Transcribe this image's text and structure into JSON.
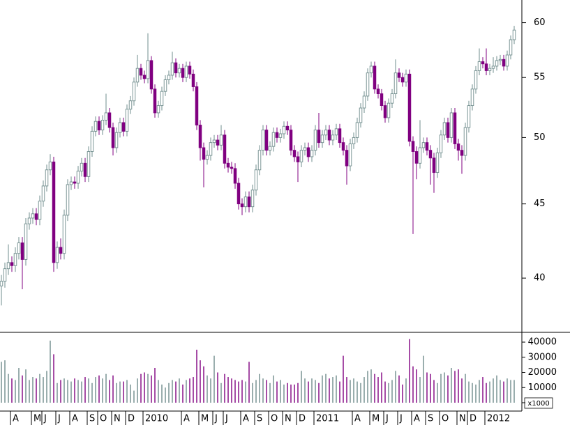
{
  "chart_data": {
    "type": "candlestick",
    "categories": [
      null,
      null,
      null,
      "A",
      null,
      null,
      null,
      null,
      null,
      "M",
      null,
      null,
      "J",
      null,
      null,
      null,
      "J",
      null,
      null,
      null,
      "A",
      null,
      null,
      null,
      null,
      "S",
      null,
      null,
      "O",
      null,
      null,
      null,
      "N",
      null,
      null,
      null,
      "D",
      null,
      null,
      null,
      null,
      "2010",
      null,
      null,
      null,
      null,
      null,
      null,
      null,
      null,
      null,
      null,
      "A",
      null,
      null,
      null,
      null,
      "M",
      null,
      null,
      null,
      "J",
      null,
      null,
      "J",
      null,
      null,
      null,
      null,
      "A",
      null,
      null,
      null,
      "S",
      null,
      null,
      null,
      "O",
      null,
      null,
      null,
      "N",
      null,
      null,
      null,
      "D",
      null,
      null,
      null,
      null,
      "2011",
      null,
      null,
      null,
      null,
      null,
      null,
      null,
      null,
      null,
      null,
      "A",
      null,
      null,
      null,
      null,
      "M",
      null,
      null,
      null,
      "J",
      null,
      null,
      null,
      "J",
      null,
      null,
      null,
      "A",
      null,
      null,
      null,
      "S",
      null,
      null,
      null,
      "O",
      null,
      null,
      null,
      null,
      "N",
      null,
      null,
      "D",
      null,
      null,
      null,
      null,
      "2012",
      null,
      null,
      null,
      null,
      null,
      null,
      null,
      null
    ],
    "open": [
      39.5,
      39.8,
      40.6,
      41.0,
      40.8,
      41.6,
      42.3,
      41.2,
      43.6,
      44.0,
      44.3,
      43.9,
      45.2,
      46.3,
      47.5,
      48.1,
      41.0,
      42.0,
      41.6,
      44.2,
      46.4,
      46.6,
      46.5,
      47.4,
      48.0,
      47.0,
      48.9,
      50.5,
      51.3,
      50.6,
      51.4,
      52.0,
      50.8,
      49.2,
      50.4,
      51.2,
      50.5,
      52.3,
      53.0,
      54.6,
      55.8,
      55.2,
      54.9,
      56.5,
      54.0,
      52.0,
      52.6,
      53.8,
      54.8,
      55.2,
      56.3,
      55.4,
      55.8,
      55.0,
      56.0,
      55.3,
      54.2,
      51.0,
      49.2,
      48.3,
      48.6,
      49.6,
      49.8,
      49.4,
      50.2,
      48.0,
      47.7,
      47.6,
      46.5,
      45.0,
      44.8,
      45.5,
      44.8,
      46.0,
      47.5,
      49.0,
      50.6,
      49.0,
      49.3,
      50.4,
      50.0,
      50.3,
      50.9,
      50.6,
      49.0,
      48.5,
      48.1,
      49.0,
      49.2,
      48.5,
      49.0,
      50.6,
      49.6,
      50.2,
      50.6,
      49.8,
      50.2,
      50.7,
      49.6,
      49.0,
      47.8,
      49.5,
      50.0,
      51.2,
      52.4,
      53.4,
      55.4,
      56.0,
      54.0,
      53.6,
      52.6,
      51.6,
      52.8,
      53.6,
      55.4,
      55.0,
      54.6,
      55.3,
      49.7,
      48.9,
      48.0,
      49.2,
      49.6,
      49.0,
      48.4,
      47.3,
      48.8,
      50.2,
      51.2,
      50.0,
      52.0,
      49.5,
      49.0,
      48.6,
      50.8,
      52.6,
      54.0,
      55.6,
      56.4,
      56.2,
      55.6,
      55.8,
      56.0,
      56.5,
      56.6,
      56.0,
      57.0,
      58.4
    ],
    "high": [
      40.2,
      41.0,
      42.2,
      41.4,
      42.0,
      42.7,
      42.7,
      44.0,
      44.4,
      44.7,
      44.7,
      45.6,
      46.7,
      47.9,
      48.7,
      48.5,
      42.4,
      42.6,
      44.6,
      46.8,
      47.0,
      47.0,
      47.8,
      48.4,
      48.4,
      49.3,
      50.9,
      51.7,
      51.7,
      51.8,
      53.6,
      52.4,
      51.2,
      50.8,
      51.6,
      51.6,
      52.7,
      53.4,
      55.0,
      57.0,
      56.2,
      55.6,
      59.0,
      56.9,
      54.4,
      53.0,
      54.2,
      55.2,
      55.6,
      57.3,
      56.7,
      56.2,
      56.2,
      56.4,
      56.4,
      55.7,
      54.6,
      51.4,
      49.6,
      49.0,
      50.0,
      50.2,
      50.2,
      51.0,
      50.6,
      48.4,
      48.1,
      48.0,
      46.9,
      45.4,
      45.9,
      45.9,
      46.4,
      47.9,
      49.4,
      51.0,
      51.0,
      49.7,
      50.8,
      50.8,
      50.7,
      51.3,
      51.3,
      51.0,
      49.4,
      48.9,
      49.4,
      49.6,
      49.6,
      49.4,
      51.0,
      52.0,
      50.6,
      51.0,
      51.0,
      50.6,
      51.1,
      51.1,
      50.0,
      49.4,
      49.9,
      50.4,
      51.6,
      52.8,
      53.8,
      55.8,
      56.4,
      56.4,
      54.4,
      54.0,
      53.0,
      53.2,
      54.0,
      56.6,
      55.8,
      55.4,
      55.7,
      55.7,
      50.1,
      49.3,
      51.4,
      50.0,
      50.0,
      49.4,
      48.8,
      49.2,
      50.6,
      51.6,
      51.6,
      52.4,
      52.4,
      49.9,
      49.4,
      51.2,
      53.0,
      54.4,
      56.0,
      57.6,
      56.8,
      57.6,
      56.2,
      56.8,
      56.9,
      57.0,
      57.0,
      57.4,
      58.8,
      59.7
    ],
    "low": [
      38.3,
      39.4,
      40.2,
      40.4,
      40.4,
      41.2,
      39.3,
      40.8,
      43.2,
      43.6,
      43.5,
      43.5,
      44.8,
      45.9,
      47.1,
      40.4,
      40.6,
      41.2,
      41.2,
      43.8,
      46.0,
      46.1,
      46.1,
      47.0,
      46.6,
      46.6,
      48.5,
      50.1,
      50.2,
      50.2,
      51.0,
      50.4,
      48.6,
      48.8,
      50.0,
      50.1,
      50.1,
      51.9,
      52.6,
      54.2,
      54.8,
      54.5,
      54.5,
      53.6,
      51.6,
      51.6,
      52.2,
      53.4,
      54.4,
      54.8,
      55.0,
      55.0,
      54.6,
      54.6,
      54.9,
      53.8,
      50.6,
      48.2,
      46.2,
      47.9,
      48.2,
      49.2,
      49.0,
      49.0,
      47.6,
      47.3,
      47.2,
      46.1,
      44.6,
      44.2,
      44.4,
      44.4,
      44.4,
      45.6,
      47.1,
      48.6,
      48.6,
      48.6,
      48.9,
      49.6,
      49.6,
      49.9,
      50.2,
      48.6,
      48.1,
      46.6,
      47.7,
      48.6,
      48.1,
      48.1,
      48.6,
      49.2,
      49.2,
      49.8,
      49.4,
      49.4,
      49.8,
      49.2,
      48.6,
      46.4,
      47.4,
      49.1,
      49.6,
      50.8,
      52.0,
      53.0,
      55.0,
      53.6,
      53.2,
      52.2,
      51.2,
      51.2,
      52.4,
      53.2,
      54.6,
      54.2,
      54.2,
      49.3,
      42.9,
      46.8,
      47.6,
      48.8,
      48.6,
      46.4,
      45.8,
      46.9,
      48.4,
      49.8,
      49.6,
      49.6,
      49.1,
      48.2,
      47.2,
      48.2,
      50.4,
      52.2,
      53.6,
      55.2,
      55.8,
      55.2,
      55.2,
      55.4,
      55.6,
      56.1,
      55.6,
      55.6,
      56.6,
      58.0
    ],
    "close": [
      39.8,
      40.6,
      41.0,
      40.8,
      41.6,
      42.3,
      41.2,
      43.6,
      44.0,
      44.3,
      43.9,
      45.2,
      46.3,
      47.5,
      48.1,
      41.0,
      42.0,
      41.6,
      44.2,
      46.4,
      46.6,
      46.5,
      47.4,
      48.0,
      47.0,
      48.9,
      50.5,
      51.3,
      50.6,
      51.4,
      52.0,
      50.8,
      49.2,
      50.4,
      51.2,
      50.5,
      52.3,
      53.0,
      54.6,
      55.8,
      55.2,
      54.9,
      56.5,
      54.0,
      52.0,
      52.6,
      53.8,
      54.8,
      55.2,
      56.3,
      55.4,
      55.8,
      55.0,
      56.0,
      55.3,
      54.2,
      51.0,
      49.2,
      48.3,
      48.6,
      49.6,
      49.8,
      49.4,
      50.2,
      48.0,
      47.7,
      47.6,
      46.5,
      45.0,
      44.8,
      45.5,
      44.8,
      46.0,
      47.5,
      49.0,
      50.6,
      49.0,
      49.3,
      50.4,
      50.0,
      50.3,
      50.9,
      50.6,
      49.0,
      48.5,
      48.1,
      49.0,
      49.2,
      48.5,
      49.0,
      50.6,
      49.6,
      50.2,
      50.6,
      49.8,
      50.2,
      50.7,
      49.6,
      49.0,
      47.8,
      49.5,
      50.0,
      51.2,
      52.4,
      53.4,
      55.4,
      56.0,
      54.0,
      53.6,
      52.6,
      51.6,
      52.8,
      53.6,
      55.4,
      55.0,
      54.6,
      55.3,
      49.7,
      48.9,
      48.0,
      49.2,
      49.6,
      49.0,
      48.4,
      47.3,
      48.8,
      50.2,
      51.2,
      50.0,
      52.0,
      49.5,
      49.0,
      48.6,
      50.8,
      52.6,
      54.0,
      55.6,
      56.4,
      56.2,
      55.6,
      55.8,
      56.0,
      56.5,
      56.6,
      56.0,
      57.0,
      58.4,
      59.3
    ],
    "volume": [
      27000,
      28000,
      19000,
      16000,
      15000,
      23000,
      18000,
      22000,
      15000,
      17000,
      16000,
      19000,
      17000,
      21000,
      41000,
      32000,
      13000,
      15000,
      16000,
      15000,
      14000,
      16000,
      15000,
      14000,
      17000,
      16000,
      13000,
      17000,
      18000,
      16000,
      19000,
      15000,
      18000,
      13000,
      14000,
      14000,
      15000,
      12000,
      8000,
      16000,
      19000,
      20000,
      19000,
      18000,
      23000,
      15000,
      12000,
      10000,
      13000,
      15000,
      14000,
      16000,
      12000,
      15000,
      16000,
      17000,
      35000,
      28000,
      24000,
      18000,
      16000,
      31000,
      20000,
      13000,
      19000,
      17000,
      16000,
      15000,
      14000,
      15000,
      14000,
      27000,
      13000,
      15000,
      19000,
      16000,
      15000,
      13000,
      18000,
      14000,
      15000,
      12000,
      13000,
      12000,
      12000,
      13000,
      21000,
      16000,
      14000,
      16000,
      15000,
      13000,
      18000,
      19000,
      16000,
      17000,
      18000,
      14000,
      31000,
      17000,
      15000,
      16000,
      14000,
      13000,
      17000,
      21000,
      22000,
      19000,
      17000,
      20000,
      14000,
      13000,
      15000,
      21000,
      18000,
      12000,
      16000,
      42000,
      24000,
      22000,
      17000,
      31000,
      20000,
      19000,
      15000,
      13000,
      19000,
      20000,
      18000,
      23000,
      21000,
      22000,
      16000,
      19000,
      14000,
      13000,
      12000,
      15000,
      17000,
      13000,
      14000,
      16000,
      18000,
      15000,
      14000,
      16000,
      15000,
      15000
    ],
    "up_color": "#6f8c8c",
    "down_color": "#800080",
    "ylim": [
      36.7,
      62.2
    ],
    "yticks": [
      40,
      45,
      50,
      55,
      60
    ],
    "log_scale": true,
    "volume_ylim": [
      0,
      46000
    ],
    "volume_yticks": [
      0,
      10000,
      20000,
      30000,
      40000
    ],
    "volume_unit": "x1000"
  }
}
